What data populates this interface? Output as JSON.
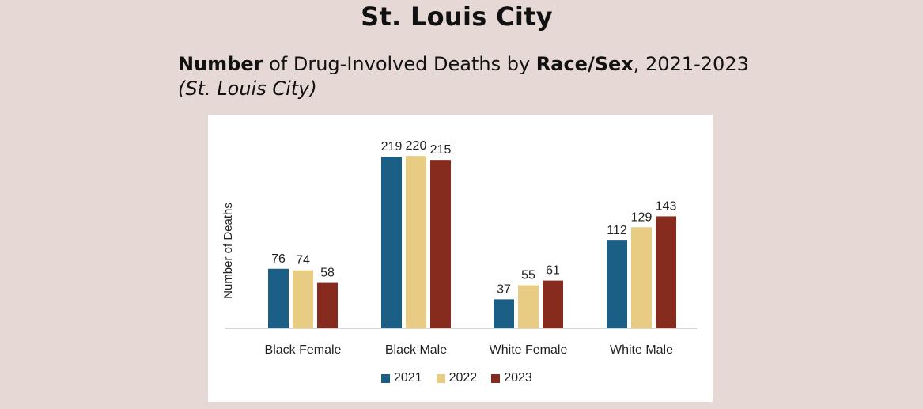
{
  "header": {
    "title": "St. Louis City",
    "subtitle_bold_1": "Number",
    "subtitle_text_1": " of Drug-Involved Deaths by ",
    "subtitle_bold_2": "Race/Sex",
    "subtitle_text_2": ", 2021-2023",
    "subtitle_line_2": "(St. Louis City)"
  },
  "chart_data": {
    "type": "bar",
    "categories": [
      "Black Female",
      "Black Male",
      "White Female",
      "White Male"
    ],
    "series": [
      {
        "name": "2021",
        "values": [
          76,
          219,
          37,
          112
        ],
        "color": "#1b5e86"
      },
      {
        "name": "2022",
        "values": [
          74,
          220,
          55,
          129
        ],
        "color": "#e8cc84"
      },
      {
        "name": "2023",
        "values": [
          58,
          215,
          61,
          143
        ],
        "color": "#862b1e"
      }
    ],
    "ylabel": "Number of Deaths",
    "xlabel": "",
    "ylim": [
      0,
      240
    ],
    "grid": false,
    "legend_position": "bottom",
    "data_labels": true
  }
}
